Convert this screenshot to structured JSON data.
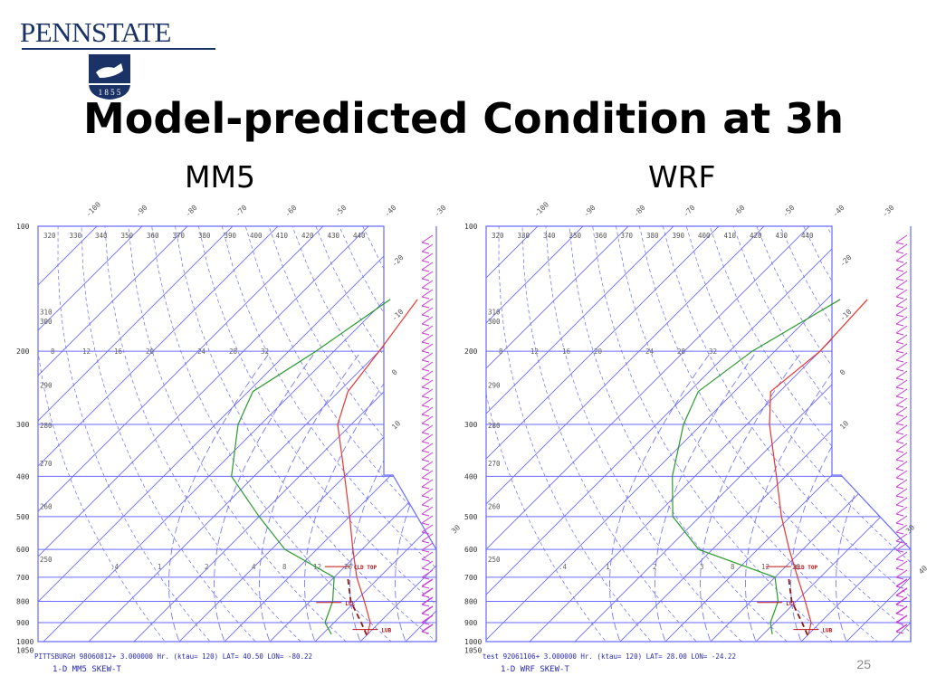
{
  "logo": {
    "text": "PENNSTATE",
    "year": "1 8 5 5"
  },
  "title": "Model-predicted Condition at 3h",
  "page_number": "25",
  "colors": {
    "grid": "#6a6aff",
    "temperature": "#e8342e",
    "dewpoint": "#2a9a2a",
    "wind": "#c93ad6",
    "annotation": "#bb1111",
    "footer": "#2a2ab0"
  },
  "chart_data": [
    {
      "type": "line",
      "chart_type": "skew-T log-P diagram",
      "title": "MM5",
      "ylabel": "",
      "y_scale": "log",
      "y_reversed": true,
      "pressure_ticks": [
        "100",
        "200",
        "300",
        "400",
        "500",
        "600",
        "700",
        "800",
        "900",
        "1000",
        "1050"
      ],
      "theta_labels": [
        "320",
        "330",
        "340",
        "350",
        "360",
        "370",
        "380",
        "390",
        "400",
        "410",
        "420",
        "430",
        "440",
        "310",
        "300",
        "290",
        "280",
        "270",
        "260",
        "250"
      ],
      "isotherm_labels": [
        "-100",
        "-90",
        "-80",
        "-70",
        "-60",
        "-50",
        "-40",
        "-30",
        "-20",
        "-10",
        "0",
        "10",
        "30"
      ],
      "mixing_ratio_labels": [
        "8",
        "12",
        "16",
        "20",
        "24",
        "28",
        "32",
        ".4",
        "1",
        "2",
        "4",
        "8",
        "12",
        "20"
      ],
      "series": [
        {
          "name": "",
          "color": "#e8342e",
          "points": [
            {
              "p": 150,
              "t": -43
            },
            {
              "p": 200,
              "t": -40
            },
            {
              "p": 250,
              "t": -38
            },
            {
              "p": 300,
              "t": -33
            },
            {
              "p": 400,
              "t": -20
            },
            {
              "p": 500,
              "t": -10
            },
            {
              "p": 600,
              "t": -2
            },
            {
              "p": 700,
              "t": 5
            },
            {
              "p": 800,
              "t": 12
            },
            {
              "p": 900,
              "t": 18
            },
            {
              "p": 960,
              "t": 20
            }
          ]
        },
        {
          "name": "",
          "color": "#2a9a2a",
          "points": [
            {
              "p": 150,
              "t": -49
            },
            {
              "p": 200,
              "t": -54
            },
            {
              "p": 250,
              "t": -59
            },
            {
              "p": 300,
              "t": -55
            },
            {
              "p": 400,
              "t": -45
            },
            {
              "p": 500,
              "t": -30
            },
            {
              "p": 600,
              "t": -17
            },
            {
              "p": 700,
              "t": 0
            },
            {
              "p": 800,
              "t": 5
            },
            {
              "p": 900,
              "t": 8
            },
            {
              "p": 960,
              "t": 12
            }
          ]
        }
      ],
      "annotations": [
        "CLD TOP",
        "LCL",
        "LUB"
      ],
      "footer": {
        "line1": "PITTSBURGH    98060812+  3.000000 Hr. (ktau=   120)  LAT=  40.50  LON= -80.22",
        "line2": "1-D MM5 SKEW-T"
      }
    },
    {
      "type": "line",
      "chart_type": "skew-T log-P diagram",
      "title": "WRF",
      "ylabel": "",
      "y_scale": "log",
      "y_reversed": true,
      "pressure_ticks": [
        "100",
        "200",
        "300",
        "400",
        "500",
        "600",
        "700",
        "800",
        "900",
        "1000",
        "1050"
      ],
      "theta_labels": [
        "320",
        "330",
        "340",
        "350",
        "360",
        "370",
        "380",
        "390",
        "400",
        "410",
        "420",
        "430",
        "440",
        "310",
        "300",
        "290",
        "280",
        "270",
        "260",
        "250"
      ],
      "isotherm_labels": [
        "-100",
        "-90",
        "-80",
        "-70",
        "-60",
        "-50",
        "-40",
        "-30",
        "-20",
        "-10",
        "0",
        "10",
        "30",
        "40"
      ],
      "mixing_ratio_labels": [
        "8",
        "12",
        "16",
        "20",
        "24",
        "28",
        "32",
        ".4",
        "1",
        "2",
        "3",
        "8",
        "12",
        "20"
      ],
      "series": [
        {
          "name": "",
          "color": "#e8342e",
          "points": [
            {
              "p": 150,
              "t": -41
            },
            {
              "p": 200,
              "t": -40
            },
            {
              "p": 250,
              "t": -42
            },
            {
              "p": 300,
              "t": -35
            },
            {
              "p": 400,
              "t": -22
            },
            {
              "p": 500,
              "t": -12
            },
            {
              "p": 600,
              "t": -3
            },
            {
              "p": 700,
              "t": 5
            },
            {
              "p": 800,
              "t": 12
            },
            {
              "p": 900,
              "t": 18
            },
            {
              "p": 960,
              "t": 20
            }
          ]
        },
        {
          "name": "",
          "color": "#2a9a2a",
          "points": [
            {
              "p": 150,
              "t": -47
            },
            {
              "p": 200,
              "t": -55
            },
            {
              "p": 250,
              "t": -58
            },
            {
              "p": 300,
              "t": -54
            },
            {
              "p": 400,
              "t": -45
            },
            {
              "p": 500,
              "t": -36
            },
            {
              "p": 600,
              "t": -23
            },
            {
              "p": 700,
              "t": 0
            },
            {
              "p": 800,
              "t": 6
            },
            {
              "p": 900,
              "t": 9
            },
            {
              "p": 960,
              "t": 12
            }
          ]
        }
      ],
      "annotations": [
        "CLD TOP",
        "LCL",
        "LUB"
      ],
      "footer": {
        "line1": "test         92061106+  3.000000 Hr. (ktau=   120)  LAT=  28.00  LON= -24.22",
        "line2": "1-D WRF SKEW-T"
      }
    }
  ]
}
